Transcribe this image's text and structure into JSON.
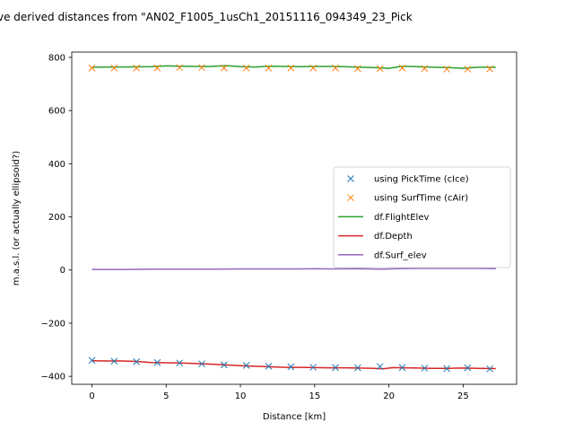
{
  "chart_data": {
    "type": "line",
    "title": "ve derived distances from \"AN02_F1005_1usCh1_20151116_094349_23_Pick",
    "xlabel": "Distance [km]",
    "ylabel": "m.a.s.l. (or actually ellipsoid?)",
    "xlim": [
      -1.36,
      28.6
    ],
    "ylim": [
      -430,
      820
    ],
    "xticks": [
      0,
      5,
      10,
      15,
      20,
      25
    ],
    "xtick_labels": [
      "0",
      "5",
      "10",
      "15",
      "20",
      "25"
    ],
    "yticks": [
      -400,
      -200,
      0,
      200,
      400,
      600,
      800
    ],
    "ytick_labels": [
      "−400",
      "−200",
      "0",
      "200",
      "400",
      "600",
      "800"
    ],
    "grid": false,
    "legend_position": "center-right",
    "series": [
      {
        "name": "using PickTime (cIce)",
        "kind": "scatter",
        "marker": "x",
        "color": "#1f77b4",
        "x": [
          0,
          1.5,
          3.0,
          4.4,
          5.9,
          7.4,
          8.9,
          10.4,
          11.9,
          13.4,
          14.9,
          16.4,
          17.9,
          19.4,
          20.9,
          22.4,
          23.9,
          25.3,
          26.8
        ],
        "y": [
          -340,
          -343,
          -345,
          -348,
          -350,
          -353,
          -357,
          -359,
          -362,
          -364,
          -366,
          -367,
          -368,
          -363,
          -367,
          -369,
          -371,
          -368,
          -372
        ]
      },
      {
        "name": "using SurfTime (cAir)",
        "kind": "scatter",
        "marker": "x",
        "color": "#ff7f0e",
        "x": [
          0,
          1.5,
          3.0,
          4.4,
          5.9,
          7.4,
          8.9,
          10.4,
          11.9,
          13.4,
          14.9,
          16.4,
          17.9,
          19.4,
          20.9,
          22.4,
          23.9,
          25.3,
          26.8
        ],
        "y": [
          760,
          760,
          760,
          760,
          762,
          762,
          760,
          760,
          760,
          760,
          760,
          760,
          758,
          758,
          760,
          758,
          756,
          756,
          757
        ]
      },
      {
        "name": "df.FlightElev",
        "kind": "line",
        "color": "#2ca02c",
        "x": [
          0,
          2,
          4,
          5,
          6,
          7,
          8,
          9,
          10,
          11,
          12,
          13,
          14,
          15,
          16,
          17,
          18,
          19,
          20,
          20.8,
          21.5,
          23,
          24,
          25,
          26,
          27.2
        ],
        "y": [
          763,
          764,
          765,
          768,
          767,
          766,
          766,
          769,
          765,
          764,
          767,
          766,
          765,
          766,
          766,
          765,
          763,
          762,
          759,
          766,
          766,
          763,
          762,
          759,
          763,
          763
        ]
      },
      {
        "name": "df.Depth",
        "kind": "line",
        "color": "#d62728",
        "x": [
          0,
          1,
          2,
          3,
          4,
          5,
          6,
          7,
          8,
          9,
          10,
          11,
          12,
          13,
          14,
          15,
          16,
          17,
          18,
          19,
          19.6,
          20.3,
          21,
          22,
          23,
          24,
          25,
          26,
          27.2
        ],
        "y": [
          -341,
          -342,
          -342,
          -344,
          -348,
          -349,
          -350,
          -352,
          -354,
          -357,
          -360,
          -362,
          -364,
          -366,
          -366,
          -367,
          -368,
          -368,
          -369,
          -370,
          -372,
          -367,
          -368,
          -369,
          -370,
          -370,
          -369,
          -370,
          -371
        ]
      },
      {
        "name": "df.Surf_elev",
        "kind": "line",
        "color": "#9467bd",
        "x": [
          0,
          2,
          4,
          6,
          8,
          10,
          12,
          14,
          15,
          16,
          18,
          19.5,
          20.5,
          22,
          24,
          26,
          27.2
        ],
        "y": [
          2,
          2,
          3,
          3,
          3,
          4,
          4,
          4,
          5,
          4,
          5,
          3,
          5,
          6,
          6,
          6,
          5
        ]
      }
    ]
  }
}
